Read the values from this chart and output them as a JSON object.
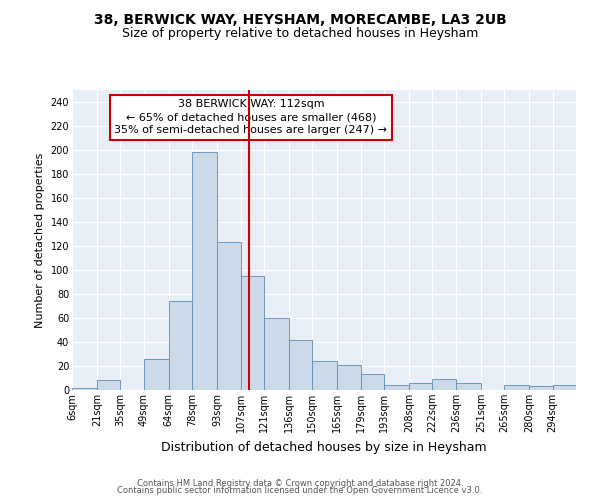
{
  "title": "38, BERWICK WAY, HEYSHAM, MORECAMBE, LA3 2UB",
  "subtitle": "Size of property relative to detached houses in Heysham",
  "xlabel": "Distribution of detached houses by size in Heysham",
  "ylabel": "Number of detached properties",
  "bar_color": "#ccd9e8",
  "bar_edge_color": "#5b8db8",
  "background_color": "#e8eef5",
  "grid_color": "#ffffff",
  "annotation_text_line1": "38 BERWICK WAY: 112sqm",
  "annotation_text_line2": "← 65% of detached houses are smaller (468)",
  "annotation_text_line3": "35% of semi-detached houses are larger (247) →",
  "vline_x": 112,
  "vline_color": "#cc0000",
  "tick_labels": [
    "6sqm",
    "21sqm",
    "35sqm",
    "49sqm",
    "64sqm",
    "78sqm",
    "93sqm",
    "107sqm",
    "121sqm",
    "136sqm",
    "150sqm",
    "165sqm",
    "179sqm",
    "193sqm",
    "208sqm",
    "222sqm",
    "236sqm",
    "251sqm",
    "265sqm",
    "280sqm",
    "294sqm"
  ],
  "bin_edges": [
    6,
    21,
    35,
    49,
    64,
    78,
    93,
    107,
    121,
    136,
    150,
    165,
    179,
    193,
    208,
    222,
    236,
    251,
    265,
    280,
    294,
    308
  ],
  "bar_heights": [
    2,
    8,
    0,
    26,
    74,
    198,
    123,
    95,
    60,
    42,
    24,
    21,
    13,
    4,
    6,
    9,
    6,
    0,
    4,
    3,
    4
  ],
  "ylim": [
    0,
    250
  ],
  "yticks": [
    0,
    20,
    40,
    60,
    80,
    100,
    120,
    140,
    160,
    180,
    200,
    220,
    240
  ],
  "footer_line1": "Contains HM Land Registry data © Crown copyright and database right 2024.",
  "footer_line2": "Contains public sector information licensed under the Open Government Licence v3.0.",
  "title_fontsize": 10,
  "subtitle_fontsize": 9,
  "xlabel_fontsize": 9,
  "ylabel_fontsize": 8,
  "tick_fontsize": 7,
  "annotation_fontsize": 8,
  "footer_fontsize": 6
}
